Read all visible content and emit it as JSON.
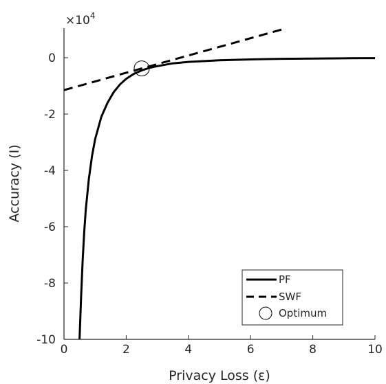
{
  "chart_data": {
    "type": "line",
    "xlabel": "Privacy Loss (ε)",
    "ylabel": "Accuracy (I)",
    "xlim": [
      0,
      10
    ],
    "ylim": [
      -10,
      1
    ],
    "y_multiplier": "×10",
    "y_multiplier_power": "4",
    "x_ticks": [
      "0",
      "2",
      "4",
      "6",
      "8",
      "10"
    ],
    "y_ticks": [
      "0",
      "-2",
      "-4",
      "-6",
      "-8",
      "-10"
    ],
    "grid": false,
    "legend_position": "bottom-right",
    "series": [
      {
        "name": "PF",
        "style": "solid",
        "x": [
          0.5,
          0.55,
          0.6,
          0.65,
          0.7,
          0.8,
          0.9,
          1.0,
          1.2,
          1.4,
          1.6,
          1.8,
          2.0,
          2.25,
          2.5,
          2.75,
          3.0,
          3.5,
          4.0,
          5.0,
          6.0,
          7.0,
          8.0,
          9.0,
          10.0
        ],
        "y": [
          -10.0,
          -8.5,
          -7.2,
          -6.2,
          -5.4,
          -4.3,
          -3.5,
          -2.9,
          -2.1,
          -1.6,
          -1.22,
          -0.95,
          -0.75,
          -0.57,
          -0.45,
          -0.36,
          -0.3,
          -0.2,
          -0.15,
          -0.09,
          -0.06,
          -0.04,
          -0.03,
          -0.02,
          -0.015
        ]
      },
      {
        "name": "SWF",
        "style": "dashed",
        "x": [
          0,
          7
        ],
        "y": [
          -1.15,
          1.0
        ]
      }
    ],
    "markers": [
      {
        "name": "Optimum",
        "shape": "circle",
        "x": [
          2.5
        ],
        "y": [
          -0.38
        ]
      }
    ],
    "legend": [
      "PF",
      "SWF",
      "Optimum"
    ]
  }
}
